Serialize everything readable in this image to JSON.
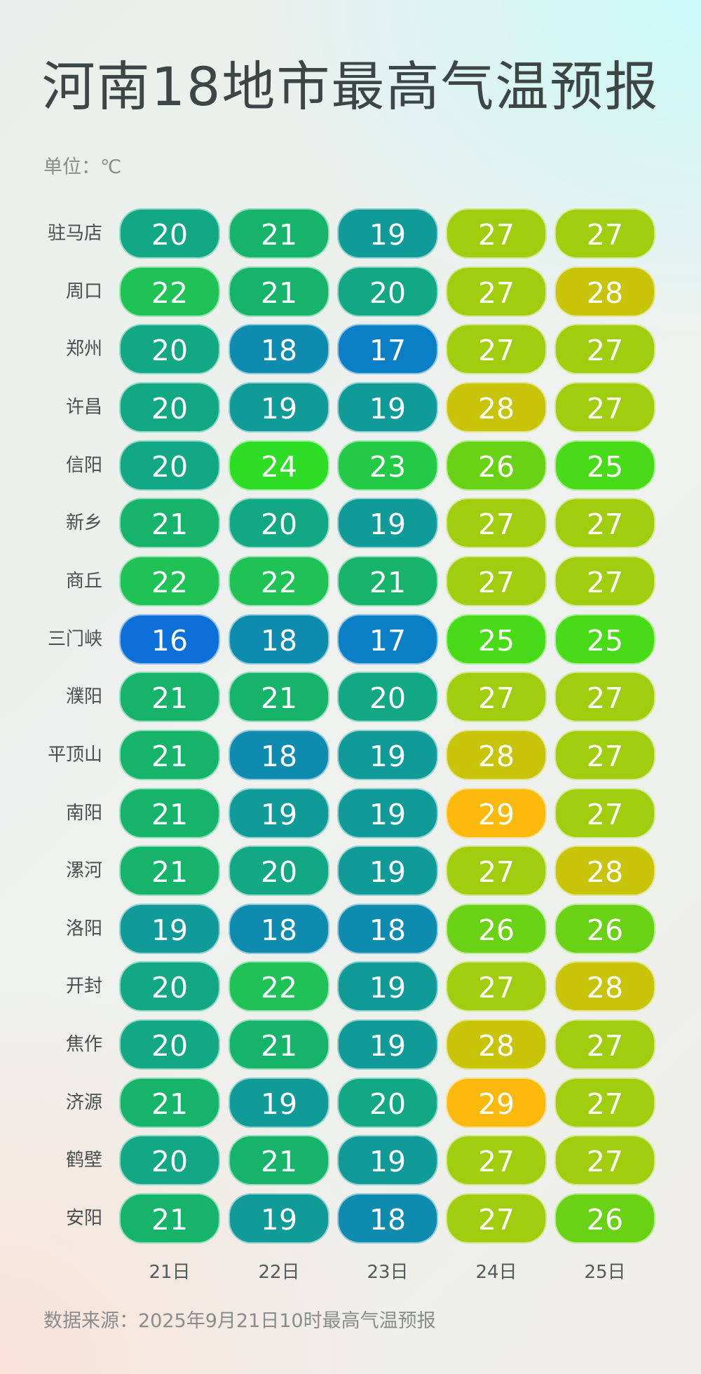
{
  "title": "河南18地市最高气温预报",
  "unit": "单位：℃",
  "source": "数据来源：2025年9月21日10时最高气温预报",
  "chart_data": {
    "type": "heatmap",
    "title": "河南18地市最高气温预报",
    "unit": "℃",
    "days": [
      "21日",
      "22日",
      "23日",
      "24日",
      "25日"
    ],
    "cities": [
      "驻马店",
      "周口",
      "郑州",
      "许昌",
      "信阳",
      "新乡",
      "商丘",
      "三门峡",
      "濮阳",
      "平顶山",
      "南阳",
      "漯河",
      "洛阳",
      "开封",
      "焦作",
      "济源",
      "鹤壁",
      "安阳"
    ],
    "values": [
      [
        20,
        21,
        19,
        27,
        27
      ],
      [
        22,
        21,
        20,
        27,
        28
      ],
      [
        20,
        18,
        17,
        27,
        27
      ],
      [
        20,
        19,
        19,
        28,
        27
      ],
      [
        20,
        24,
        23,
        26,
        25
      ],
      [
        21,
        20,
        19,
        27,
        27
      ],
      [
        22,
        22,
        21,
        27,
        27
      ],
      [
        16,
        18,
        17,
        25,
        25
      ],
      [
        21,
        21,
        20,
        27,
        27
      ],
      [
        21,
        18,
        19,
        28,
        27
      ],
      [
        21,
        19,
        19,
        29,
        27
      ],
      [
        21,
        20,
        19,
        27,
        28
      ],
      [
        19,
        18,
        18,
        26,
        26
      ],
      [
        20,
        22,
        19,
        27,
        28
      ],
      [
        20,
        21,
        19,
        28,
        27
      ],
      [
        21,
        19,
        20,
        29,
        27
      ],
      [
        20,
        21,
        19,
        27,
        27
      ],
      [
        21,
        19,
        18,
        27,
        26
      ]
    ],
    "colors": {
      "16": "#0d6fd8",
      "17": "#0b7fc6",
      "18": "#0f8bb0",
      "19": "#109a98",
      "20": "#13a884",
      "21": "#16b36b",
      "22": "#1ec255",
      "23": "#22ca45",
      "24": "#2ede24",
      "25": "#48dc18",
      "26": "#6ad214",
      "27": "#a0cd0e",
      "28": "#c8c40a",
      "29": "#fbb90b"
    }
  }
}
